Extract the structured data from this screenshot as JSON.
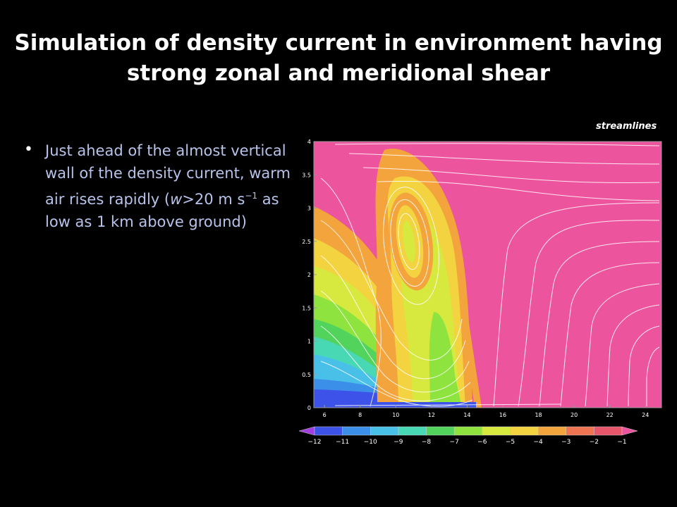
{
  "title": "Simulation of density current in environment having strong zonal and meridional shear",
  "bullet": {
    "text_before": "Just ahead of the almost vertical wall of the density current, warm air rises rapidly (",
    "w": "w",
    "text_middle": ">20 m s",
    "exponent": "−1",
    "text_after": " as low as 1 km above ground)"
  },
  "figure_label": "streamlines",
  "chart_data": {
    "type": "heatmap",
    "x": {
      "ticks": [
        6,
        8,
        10,
        12,
        14,
        16,
        18,
        20,
        22,
        24
      ],
      "range": [
        5.4,
        24.9
      ]
    },
    "y": {
      "ticks": [
        0,
        0.5,
        1,
        1.5,
        2,
        2.5,
        3,
        3.5,
        4
      ],
      "range": [
        0,
        4
      ]
    },
    "colorbar": {
      "levels": [
        -12,
        -11,
        -10,
        -9,
        -8,
        -7,
        -6,
        -5,
        -4,
        -3,
        -2,
        -1
      ],
      "tick_labels": [
        "−12",
        "−11",
        "−10",
        "−9",
        "−8",
        "−7",
        "−6",
        "−5",
        "−4",
        "−3",
        "−2",
        "−1"
      ],
      "colors": [
        "#a33fe0",
        "#3d52e8",
        "#3c8fe8",
        "#48c0e8",
        "#48d9b4",
        "#52d35c",
        "#8ee33e",
        "#d7e83e",
        "#f3d33f",
        "#f4a43c",
        "#ef7452",
        "#e8566c",
        "#ec559e"
      ]
    },
    "front_position_x": 14.5,
    "overlay": "streamlines"
  }
}
